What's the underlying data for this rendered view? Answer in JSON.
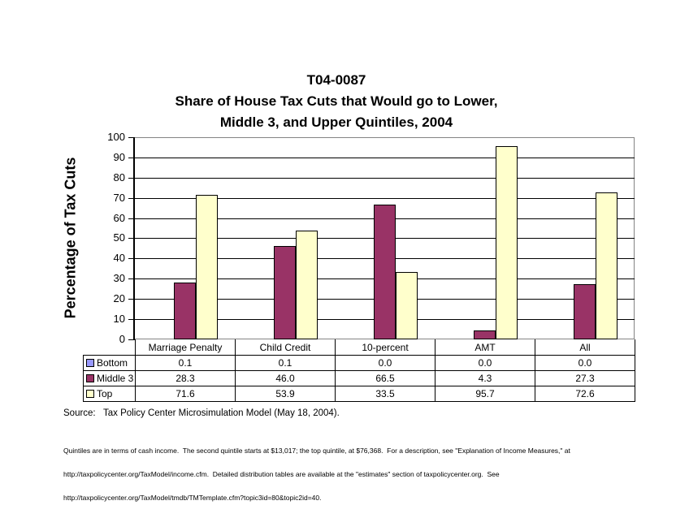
{
  "chart_data": {
    "type": "bar",
    "title_lines": [
      "T04-0087",
      "Share of House Tax Cuts that Would go to Lower,",
      "Middle 3, and Upper Quintiles, 2004"
    ],
    "ylabel": "Percentage of Tax Cuts",
    "xlabel": "",
    "ylim": [
      0,
      100
    ],
    "ytick_step": 10,
    "grid": true,
    "legend_position": "data table attached below chart, keys in left column",
    "axis_color": "#000000",
    "plot_border_color": "#848484",
    "categories": [
      "Marriage Penalty",
      "Child Credit",
      "10-percent",
      "AMT",
      "All"
    ],
    "series": [
      {
        "name": "Bottom",
        "color": "#9999FF",
        "values": [
          0.1,
          0.1,
          0.0,
          0.0,
          0.0
        ],
        "labels": [
          "0.1",
          "0.1",
          "0.0",
          "0.0",
          "0.0"
        ]
      },
      {
        "name": "Middle 3",
        "color": "#993366",
        "values": [
          28.3,
          46.0,
          66.5,
          4.3,
          27.3
        ],
        "labels": [
          "28.3",
          "46.0",
          "66.5",
          "4.3",
          "27.3"
        ]
      },
      {
        "name": "Top",
        "color": "#FFFFCC",
        "values": [
          71.6,
          53.9,
          33.5,
          95.7,
          72.6
        ],
        "labels": [
          "71.6",
          "53.9",
          "33.5",
          "95.7",
          "72.6"
        ]
      }
    ]
  },
  "source": "Source:   Tax Policy Center Microsimulation Model (May 18, 2004).",
  "footnote": {
    "line1": "Quintiles are in terms of cash income.  The second quintile starts at $13,017; the top quintile, at $76,368.  For a description, see \"Explanation of Income Measures,\" at",
    "line2": "http://taxpolicycenter.org/TaxModel/income.cfm.  Detailed distribution tables are available at the \"estimates\" section of taxpolicycenter.org.  See",
    "line3": "http://taxpolicycenter.org/TaxModel/tmdb/TMTemplate.cfm?topic3id=80&topic2id=40."
  }
}
